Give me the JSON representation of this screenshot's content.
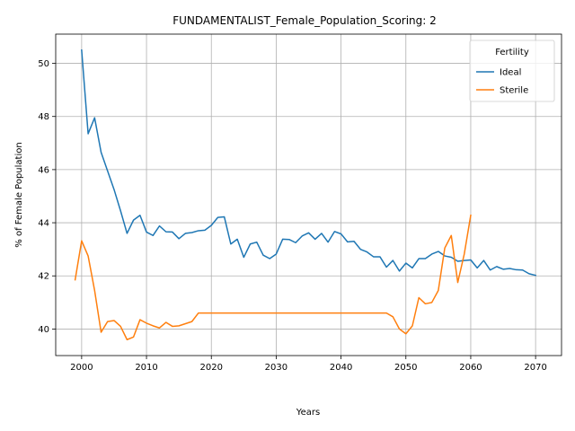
{
  "chart_data": {
    "type": "line",
    "title": "FUNDAMENTALIST_Female_Population_Scoring: 2",
    "xlabel": "Years",
    "ylabel": "% of Female Population",
    "xlim": [
      1996,
      2074
    ],
    "ylim": [
      39.0,
      51.1
    ],
    "xticks": [
      2000,
      2010,
      2020,
      2030,
      2040,
      2050,
      2060,
      2070
    ],
    "yticks": [
      40,
      42,
      44,
      46,
      48,
      50
    ],
    "grid": true,
    "legend": {
      "title": "Fertility",
      "placement": "top-right"
    },
    "series": [
      {
        "name": "Ideal",
        "color": "#1f77b4",
        "x": [
          2000,
          2001,
          2002,
          2003,
          2004,
          2005,
          2006,
          2007,
          2008,
          2009,
          2010,
          2011,
          2012,
          2013,
          2014,
          2015,
          2016,
          2017,
          2018,
          2019,
          2020,
          2021,
          2022,
          2023,
          2024,
          2025,
          2026,
          2027,
          2028,
          2029,
          2030,
          2031,
          2032,
          2033,
          2034,
          2035,
          2036,
          2037,
          2038,
          2039,
          2040,
          2041,
          2042,
          2043,
          2044,
          2045,
          2046,
          2047,
          2048,
          2049,
          2050,
          2051,
          2052,
          2053,
          2054,
          2055,
          2056,
          2057,
          2058,
          2059,
          2060,
          2061,
          2062,
          2063,
          2064,
          2065,
          2066,
          2067,
          2068,
          2069,
          2070
        ],
        "values": [
          50.5,
          47.35,
          47.95,
          46.65,
          45.95,
          45.25,
          44.45,
          43.6,
          44.1,
          44.28,
          43.65,
          43.52,
          43.88,
          43.66,
          43.65,
          43.4,
          43.6,
          43.63,
          43.7,
          43.72,
          43.9,
          44.2,
          44.22,
          43.2,
          43.38,
          42.7,
          43.2,
          43.27,
          42.78,
          42.65,
          42.82,
          43.38,
          43.37,
          43.25,
          43.5,
          43.62,
          43.38,
          43.6,
          43.27,
          43.67,
          43.58,
          43.28,
          43.3,
          43.0,
          42.9,
          42.72,
          42.72,
          42.33,
          42.58,
          42.18,
          42.48,
          42.3,
          42.65,
          42.65,
          42.82,
          42.92,
          42.75,
          42.7,
          42.55,
          42.58,
          42.6,
          42.3,
          42.58,
          42.22,
          42.35,
          42.25,
          42.28,
          42.23,
          42.22,
          42.08,
          42.02
        ]
      },
      {
        "name": "Sterile",
        "color": "#ff7f0e",
        "x": [
          1999,
          2000,
          2001,
          2002,
          2003,
          2004,
          2005,
          2006,
          2007,
          2008,
          2009,
          2010,
          2011,
          2012,
          2013,
          2014,
          2015,
          2016,
          2017,
          2018,
          2019,
          2020,
          2021,
          2022,
          2023,
          2024,
          2025,
          2026,
          2027,
          2028,
          2029,
          2030,
          2031,
          2032,
          2033,
          2034,
          2035,
          2036,
          2037,
          2038,
          2039,
          2040,
          2041,
          2042,
          2043,
          2044,
          2045,
          2046,
          2047,
          2048,
          2049,
          2050,
          2051,
          2052,
          2053,
          2054,
          2055,
          2056,
          2057,
          2058,
          2059,
          2060
        ],
        "values": [
          41.85,
          43.32,
          42.75,
          41.45,
          39.88,
          40.28,
          40.32,
          40.1,
          39.6,
          39.7,
          40.35,
          40.22,
          40.12,
          40.04,
          40.25,
          40.1,
          40.12,
          40.2,
          40.28,
          40.6,
          40.6,
          40.6,
          40.6,
          40.6,
          40.6,
          40.6,
          40.6,
          40.6,
          40.6,
          40.6,
          40.6,
          40.6,
          40.6,
          40.6,
          40.6,
          40.6,
          40.6,
          40.6,
          40.6,
          40.6,
          40.6,
          40.6,
          40.6,
          40.6,
          40.6,
          40.6,
          40.6,
          40.6,
          40.6,
          40.46,
          40.0,
          39.82,
          40.12,
          41.18,
          40.95,
          41.0,
          41.45,
          43.05,
          43.52,
          41.75,
          42.82,
          44.28
        ]
      }
    ]
  }
}
